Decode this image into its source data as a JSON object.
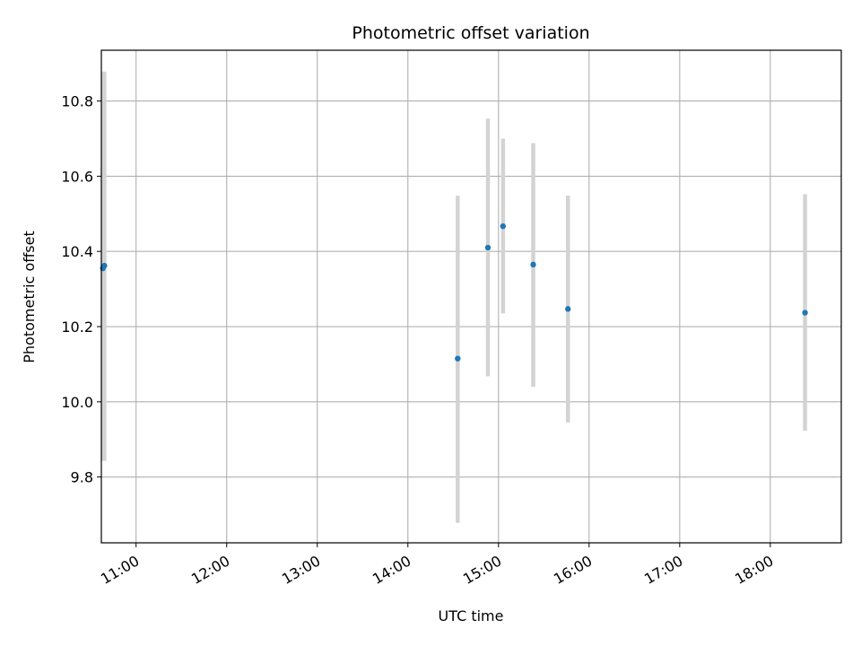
{
  "chart_data": {
    "type": "scatter",
    "title": "Photometric offset variation",
    "xlabel": "UTC time",
    "ylabel": "Photometric offset",
    "x_ticks": [
      "11:00",
      "12:00",
      "13:00",
      "14:00",
      "15:00",
      "16:00",
      "17:00",
      "18:00"
    ],
    "y_ticks": [
      "9.8",
      "10.0",
      "10.2",
      "10.4",
      "10.6",
      "10.8"
    ],
    "xlim": [
      "10:37",
      "18:47"
    ],
    "ylim": [
      9.625,
      10.935
    ],
    "grid": true,
    "points": [
      {
        "x": "10:38",
        "y": 10.355,
        "err_low": 9.843,
        "err_high": 10.878
      },
      {
        "x": "10:39",
        "y": 10.362,
        "err_low": 9.843,
        "err_high": 10.878
      },
      {
        "x": "14:33",
        "y": 10.115,
        "err_low": 9.678,
        "err_high": 10.548
      },
      {
        "x": "14:53",
        "y": 10.41,
        "err_low": 10.068,
        "err_high": 10.753
      },
      {
        "x": "15:03",
        "y": 10.467,
        "err_low": 10.235,
        "err_high": 10.7
      },
      {
        "x": "15:23",
        "y": 10.365,
        "err_low": 10.04,
        "err_high": 10.688
      },
      {
        "x": "15:46",
        "y": 10.247,
        "err_low": 9.945,
        "err_high": 10.548
      },
      {
        "x": "18:23",
        "y": 10.237,
        "err_low": 9.923,
        "err_high": 10.552
      }
    ],
    "marker_color": "#1f77b4",
    "errorbar_color": "#d3d3d3",
    "grid_color": "#b0b0b0"
  }
}
